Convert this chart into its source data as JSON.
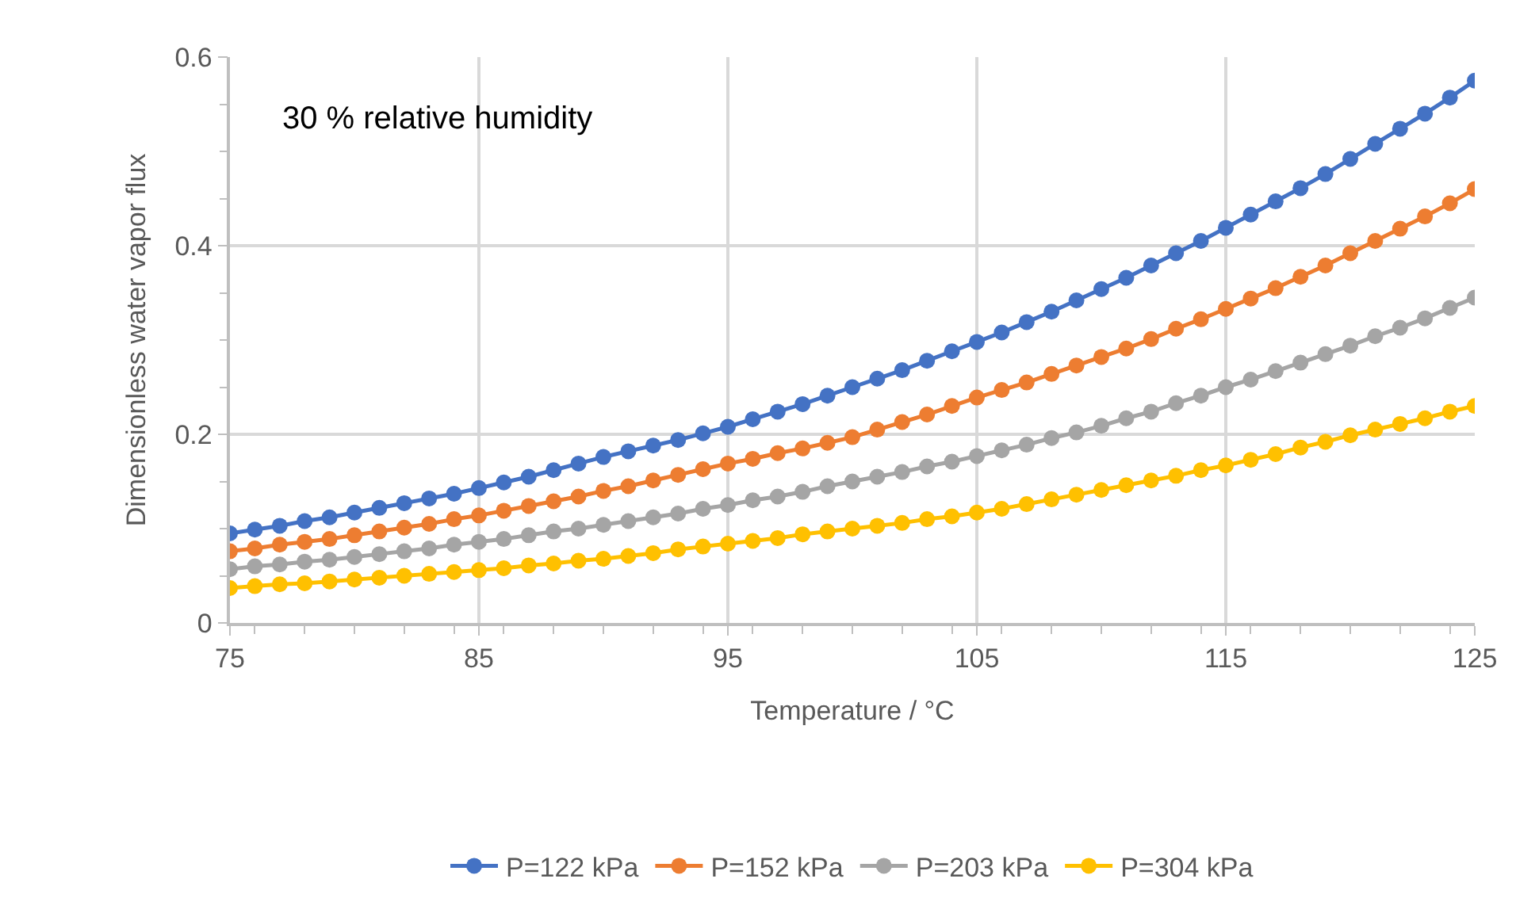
{
  "chart_data": {
    "type": "line",
    "xlabel": "Temperature / °C",
    "ylabel": "Dimensionless water vapor flux",
    "annotations": [
      "30 % relative humidity"
    ],
    "x": [
      75,
      76,
      77,
      78,
      79,
      80,
      81,
      82,
      83,
      84,
      85,
      86,
      87,
      88,
      89,
      90,
      91,
      92,
      93,
      94,
      95,
      96,
      97,
      98,
      99,
      100,
      101,
      102,
      103,
      104,
      105,
      106,
      107,
      108,
      109,
      110,
      111,
      112,
      113,
      114,
      115,
      116,
      117,
      118,
      119,
      120,
      121,
      122,
      123,
      124,
      125
    ],
    "series": [
      {
        "name": "P=122 kPa",
        "color": "#4472c4",
        "values": [
          0.095,
          0.099,
          0.103,
          0.108,
          0.112,
          0.117,
          0.122,
          0.127,
          0.132,
          0.137,
          0.143,
          0.149,
          0.155,
          0.162,
          0.169,
          0.176,
          0.182,
          0.188,
          0.194,
          0.201,
          0.208,
          0.216,
          0.224,
          0.232,
          0.241,
          0.25,
          0.259,
          0.268,
          0.278,
          0.288,
          0.298,
          0.308,
          0.319,
          0.33,
          0.342,
          0.354,
          0.366,
          0.379,
          0.392,
          0.405,
          0.419,
          0.433,
          0.447,
          0.461,
          0.476,
          0.492,
          0.508,
          0.524,
          0.54,
          0.557,
          0.575
        ]
      },
      {
        "name": "P=152 kPa",
        "color": "#ed7d31",
        "values": [
          0.076,
          0.079,
          0.083,
          0.086,
          0.089,
          0.093,
          0.097,
          0.101,
          0.105,
          0.11,
          0.114,
          0.119,
          0.124,
          0.129,
          0.134,
          0.14,
          0.145,
          0.151,
          0.157,
          0.163,
          0.169,
          0.174,
          0.18,
          0.185,
          0.191,
          0.197,
          0.205,
          0.213,
          0.221,
          0.23,
          0.239,
          0.247,
          0.255,
          0.264,
          0.273,
          0.282,
          0.291,
          0.301,
          0.312,
          0.322,
          0.333,
          0.344,
          0.355,
          0.367,
          0.379,
          0.392,
          0.405,
          0.418,
          0.431,
          0.445,
          0.46
        ]
      },
      {
        "name": "P=203 kPa",
        "color": "#a5a5a5",
        "values": [
          0.057,
          0.06,
          0.062,
          0.065,
          0.067,
          0.07,
          0.073,
          0.076,
          0.079,
          0.083,
          0.086,
          0.089,
          0.093,
          0.097,
          0.1,
          0.104,
          0.108,
          0.112,
          0.116,
          0.121,
          0.125,
          0.13,
          0.134,
          0.139,
          0.145,
          0.15,
          0.155,
          0.16,
          0.166,
          0.171,
          0.177,
          0.183,
          0.189,
          0.196,
          0.202,
          0.209,
          0.217,
          0.224,
          0.233,
          0.241,
          0.25,
          0.258,
          0.267,
          0.276,
          0.285,
          0.294,
          0.304,
          0.313,
          0.323,
          0.334,
          0.345
        ]
      },
      {
        "name": "P=304 kPa",
        "color": "#ffc000",
        "values": [
          0.037,
          0.039,
          0.041,
          0.042,
          0.044,
          0.046,
          0.048,
          0.05,
          0.052,
          0.054,
          0.056,
          0.058,
          0.061,
          0.063,
          0.066,
          0.068,
          0.071,
          0.074,
          0.078,
          0.081,
          0.084,
          0.087,
          0.09,
          0.094,
          0.097,
          0.1,
          0.103,
          0.106,
          0.11,
          0.113,
          0.117,
          0.121,
          0.126,
          0.131,
          0.136,
          0.141,
          0.146,
          0.151,
          0.156,
          0.162,
          0.167,
          0.173,
          0.179,
          0.186,
          0.192,
          0.199,
          0.205,
          0.211,
          0.217,
          0.224,
          0.23
        ]
      }
    ],
    "xlim": [
      75,
      125
    ],
    "xticks": [
      75,
      85,
      95,
      105,
      115,
      125
    ],
    "ylim": [
      0,
      0.6
    ],
    "yticks": [
      0,
      0.2,
      0.4,
      0.6
    ],
    "grid": true,
    "legend": "bottom",
    "marker": "circle",
    "line_style": "solid"
  }
}
